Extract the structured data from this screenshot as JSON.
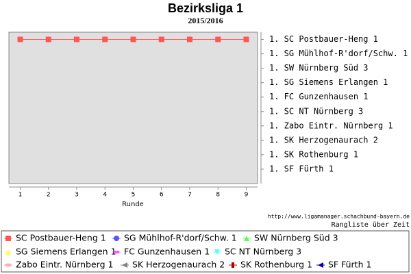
{
  "chart_data": {
    "type": "line",
    "title": "Bezirksliga 1",
    "subtitle": "2015/2016",
    "x_label": "Runde",
    "x": [
      1,
      2,
      3,
      4,
      5,
      6,
      7,
      8,
      9
    ],
    "xlim": [
      0.6,
      9.4
    ],
    "xticks": [
      1,
      2,
      3,
      4,
      5,
      6,
      7,
      8,
      9
    ],
    "ylim": [
      11,
      0.5
    ],
    "yticks": [
      {
        "value": 1,
        "label": "1. SC Postbauer-Heng 1"
      },
      {
        "value": 2,
        "label": "1. SG Mühlhof-R'dorf/Schw. 1"
      },
      {
        "value": 3,
        "label": "1. SW Nürnberg Süd 3"
      },
      {
        "value": 4,
        "label": "1. SG Siemens Erlangen 1"
      },
      {
        "value": 5,
        "label": "1. FC Gunzenhausen 1"
      },
      {
        "value": 6,
        "label": "1. SC NT Nürnberg 3"
      },
      {
        "value": 7,
        "label": "1. Zabo Eintr. Nürnberg 1"
      },
      {
        "value": 8,
        "label": "1. SK Herzogenaurach 2"
      },
      {
        "value": 9,
        "label": "1. SK Rothenburg 1"
      },
      {
        "value": 10,
        "label": "1. SF Fürth 1"
      }
    ],
    "series": [
      {
        "name": "SC Postbauer-Heng 1",
        "color": "#ff5555",
        "marker": "square",
        "values": [
          1,
          1,
          1,
          1,
          1,
          1,
          1,
          1,
          1
        ]
      },
      {
        "name": "SG Mühlhof-R'dorf/Schw. 1",
        "color": "#5555ff",
        "marker": "circle",
        "values": [
          null,
          null,
          null,
          null,
          null,
          null,
          null,
          null,
          null
        ]
      },
      {
        "name": "SW Nürnberg Süd 3",
        "color": "#55ff55",
        "marker": "triangle-up",
        "values": [
          null,
          null,
          null,
          null,
          null,
          null,
          null,
          null,
          null
        ]
      },
      {
        "name": "SG Siemens Erlangen 1",
        "color": "#ffff55",
        "marker": "triangle-up",
        "values": [
          null,
          null,
          null,
          null,
          null,
          null,
          null,
          null,
          null
        ]
      },
      {
        "name": "FC Gunzenhausen 1",
        "color": "#ff55ff",
        "marker": "bar",
        "values": [
          null,
          null,
          null,
          null,
          null,
          null,
          null,
          null,
          null
        ]
      },
      {
        "name": "SC NT Nürnberg 3",
        "color": "#55ffff",
        "marker": "triangle-down",
        "values": [
          null,
          null,
          null,
          null,
          null,
          null,
          null,
          null,
          null
        ]
      },
      {
        "name": "Zabo Eintr. Nürnberg 1",
        "color": "#ffafaf",
        "marker": "ellipse",
        "values": [
          null,
          null,
          null,
          null,
          null,
          null,
          null,
          null,
          null
        ]
      },
      {
        "name": "SK Herzogenaurach 2",
        "color": "#808080",
        "marker": "triangle-left",
        "values": [
          null,
          null,
          null,
          null,
          null,
          null,
          null,
          null,
          null
        ]
      },
      {
        "name": "SK Rothenburg 1",
        "color": "#b00000",
        "marker": "bar-vertical",
        "values": [
          null,
          null,
          null,
          null,
          null,
          null,
          null,
          null,
          null
        ]
      },
      {
        "name": "SF Fürth 1",
        "color": "#0000b0",
        "marker": "triangle-left",
        "values": [
          null,
          null,
          null,
          null,
          null,
          null,
          null,
          null,
          null
        ]
      }
    ],
    "source": "http://www.ligamanager.schachbund-bayern.de",
    "caption": "Rangliste über Zeit"
  }
}
